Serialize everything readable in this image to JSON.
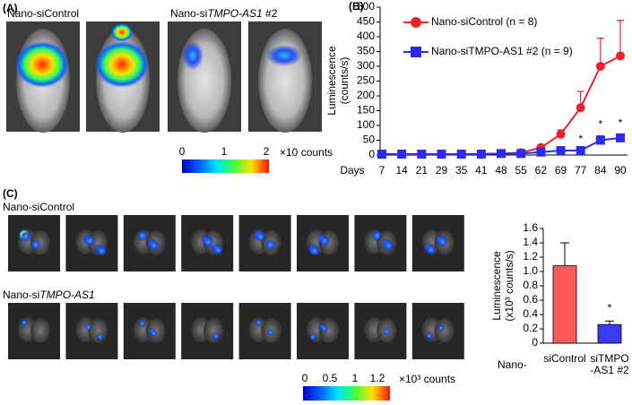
{
  "panel_a": {
    "label": "(A)",
    "group_labels": [
      [
        "Nano-siControl"
      ],
      [
        "Nano-si",
        "TMPO-AS1",
        " #2"
      ]
    ],
    "colorbar_ticks": [
      "0",
      "1",
      "2"
    ],
    "colorbar_unit": "×10 counts"
  },
  "chart_b": {
    "label": "(B)",
    "chart_data": {
      "type": "line",
      "y_label": [
        "Luminescence",
        "(counts/s)"
      ],
      "x_label": "Days",
      "categories": [
        "7",
        "14",
        "21",
        "29",
        "35",
        "41",
        "48",
        "55",
        "62",
        "69",
        "77",
        "84",
        "90"
      ],
      "ylim": [
        0,
        500
      ],
      "yticks": [
        0,
        50,
        100,
        150,
        200,
        250,
        300,
        350,
        400,
        450,
        500
      ],
      "series": [
        {
          "name": "Nano-siControl  (n = 8)",
          "color": "#e8242c",
          "marker": "circle",
          "values": [
            3,
            3,
            3,
            3,
            3,
            3,
            5,
            8,
            25,
            70,
            160,
            300,
            335
          ],
          "errors": [
            null,
            null,
            null,
            null,
            null,
            null,
            null,
            null,
            null,
            15,
            55,
            95,
            120
          ]
        },
        {
          "name": "Nano-siTMPO-AS1 #2 (n = 9)",
          "color": "#2a2af0",
          "marker": "square",
          "values": [
            3,
            3,
            3,
            3,
            3,
            3,
            5,
            5,
            10,
            15,
            15,
            50,
            58
          ],
          "errors": [
            null,
            null,
            null,
            null,
            null,
            null,
            null,
            null,
            null,
            null,
            null,
            15,
            12
          ]
        }
      ],
      "significance_labels": [
        null,
        null,
        null,
        null,
        null,
        null,
        null,
        null,
        null,
        null,
        "*",
        "*",
        "*"
      ]
    }
  },
  "panel_c": {
    "label": "(C)",
    "row_labels": [
      [
        "Nano-siControl"
      ],
      [
        "Nano-si",
        "TMPO-AS1"
      ]
    ],
    "colorbar_ticks": [
      "0",
      "0.5",
      "1",
      "1.2"
    ],
    "colorbar_unit": "×10³ counts"
  },
  "chart_c": {
    "chart_data": {
      "type": "bar",
      "y_label": [
        "Luminescence",
        "(x10³ counts/s)"
      ],
      "category_prefix": "Nano-",
      "categories": [
        [
          "siControl"
        ],
        [
          "siTMPO",
          "-AS1 #2"
        ]
      ],
      "values": [
        1.08,
        0.26
      ],
      "errors": [
        0.32,
        0.05
      ],
      "colors": [
        "#ff5a5a",
        "#3b3bf5"
      ],
      "ylim": [
        0,
        1.6
      ],
      "yticks": [
        0,
        0.2,
        0.4,
        0.6,
        0.8,
        {
          "value": 1,
          "label": "1.0"
        },
        1.2,
        1.4,
        1.6
      ],
      "significance_labels": [
        null,
        "*"
      ]
    }
  }
}
